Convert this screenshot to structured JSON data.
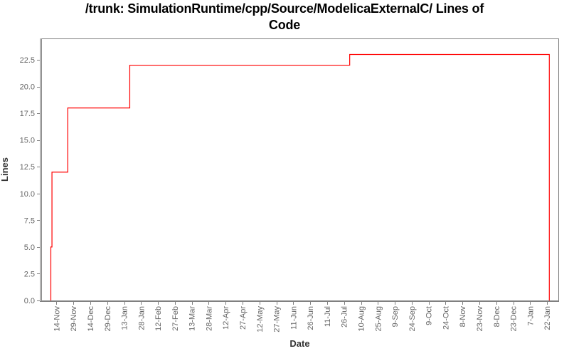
{
  "title": {
    "line1": "/trunk: SimulationRuntime/cpp/Source/ModelicaExternalC/ Lines of",
    "line2": "Code"
  },
  "colors": {
    "background": "#ffffff",
    "title": "#000000",
    "frame": "#808080",
    "tick": "#808080",
    "tick_label": "#666666",
    "axis_label": "#333333",
    "series": "#ff0000"
  },
  "chart_data": {
    "type": "line",
    "line_style": "step-after",
    "title": "/trunk: SimulationRuntime/cpp/Source/ModelicaExternalC/ Lines of Code",
    "xlabel": "Date",
    "ylabel": "Lines",
    "grid": false,
    "legend": "none",
    "x_axis": {
      "tick_labels": [
        "14-Nov",
        "29-Nov",
        "14-Dec",
        "29-Dec",
        "13-Jan",
        "28-Jan",
        "12-Feb",
        "27-Feb",
        "13-Mar",
        "28-Mar",
        "12-Apr",
        "27-Apr",
        "12-May",
        "27-May",
        "11-Jun",
        "26-Jun",
        "11-Jul",
        "26-Jul",
        "10-Aug",
        "25-Aug",
        "9-Sep",
        "24-Sep",
        "9-Oct",
        "24-Oct",
        "8-Nov",
        "23-Nov",
        "8-Dec",
        "23-Dec",
        "7-Jan",
        "22-Jan"
      ],
      "tick_interval_days": 15,
      "first_tick_day": 0,
      "domain_days": [
        -13.5,
        445
      ]
    },
    "y_axis": {
      "ticks": [
        0.0,
        2.5,
        5.0,
        7.5,
        10.0,
        12.5,
        15.0,
        17.5,
        20.0,
        22.5
      ],
      "lim": [
        0,
        24.5
      ],
      "decimals": 1
    },
    "series": [
      {
        "name": "Lines of Code",
        "color": "#ff0000",
        "start_day": -5,
        "end_day": 437,
        "steps": [
          {
            "day": -5,
            "lines": 5,
            "date_approx": "9-Nov"
          },
          {
            "day": -4,
            "lines": 12,
            "date_approx": "10-Nov"
          },
          {
            "day": 10,
            "lines": 18,
            "date_approx": "24-Nov"
          },
          {
            "day": 65,
            "lines": 22,
            "date_approx": "18-Jan"
          },
          {
            "day": 260,
            "lines": 23,
            "date_approx": "31-Jul"
          }
        ],
        "final_value_drops_to": 0
      }
    ]
  }
}
